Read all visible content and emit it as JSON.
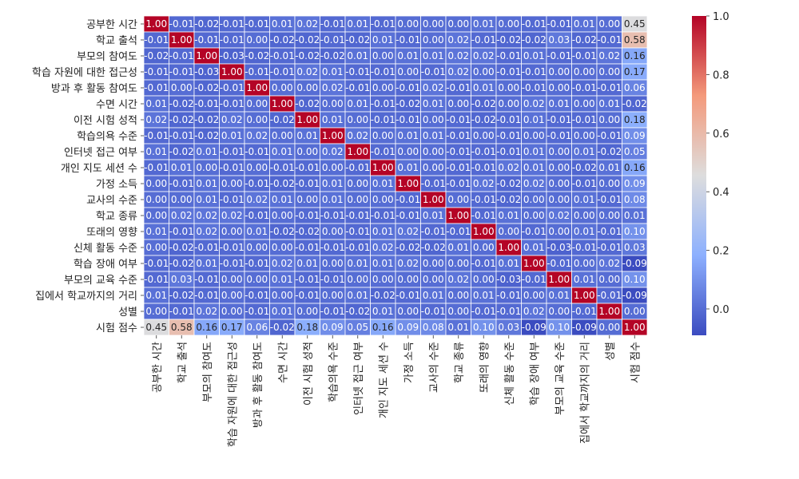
{
  "chart_data": {
    "type": "heatmap",
    "title": "",
    "xlabel": "",
    "ylabel": "",
    "colormap": "coolwarm",
    "color_low": "#3b4cc0",
    "color_mid": "#dddddd",
    "color_high": "#b40426",
    "vmin": -0.09,
    "vmax": 1.0,
    "colorbar_ticks": [
      "0.0",
      "0.2",
      "0.4",
      "0.6",
      "0.8",
      "1.0"
    ],
    "colorbar_tick_values": [
      0.0,
      0.2,
      0.4,
      0.6,
      0.8,
      1.0
    ],
    "labels": [
      "공부한 시간",
      "학교 출석",
      "부모의 참여도",
      "학습 자원에 대한 접근성",
      "방과 후 활동 참여도",
      "수면 시간",
      "이전 시험 성적",
      "학습의욕 수준",
      "인터넷 접근 여부",
      "개인 지도 세션 수",
      "가정 소득",
      "교사의 수준",
      "학교 종류",
      "또래의 영향",
      "신체 활동 수준",
      "학습 장애 여부",
      "부모의 교육 수준",
      "집에서 학교까지의 거리",
      "성별",
      "시험 점수"
    ],
    "values": [
      [
        1.0,
        -0.01,
        -0.02,
        -0.01,
        -0.01,
        0.01,
        0.02,
        -0.01,
        0.01,
        -0.01,
        0.0,
        -0.0,
        -0.0,
        0.01,
        0.0,
        -0.01,
        -0.01,
        0.01,
        0.0,
        0.45
      ],
      [
        -0.01,
        1.0,
        -0.01,
        -0.01,
        -0.0,
        -0.02,
        -0.02,
        -0.01,
        -0.02,
        0.01,
        -0.01,
        -0.0,
        0.02,
        -0.01,
        -0.02,
        -0.02,
        0.03,
        -0.02,
        -0.01,
        0.58
      ],
      [
        -0.02,
        -0.01,
        1.0,
        -0.03,
        -0.02,
        -0.01,
        -0.02,
        -0.02,
        0.01,
        -0.0,
        0.01,
        0.01,
        0.02,
        0.02,
        -0.01,
        0.01,
        -0.01,
        -0.01,
        0.02,
        0.16
      ],
      [
        -0.01,
        -0.01,
        -0.03,
        1.0,
        -0.01,
        -0.01,
        0.02,
        0.01,
        -0.01,
        -0.01,
        -0.0,
        -0.01,
        0.02,
        -0.0,
        -0.01,
        -0.01,
        -0.0,
        -0.0,
        0.0,
        0.17
      ],
      [
        -0.01,
        -0.0,
        -0.02,
        -0.01,
        1.0,
        0.0,
        0.0,
        0.02,
        -0.01,
        0.0,
        -0.01,
        0.02,
        -0.01,
        0.01,
        -0.0,
        -0.01,
        0.0,
        -0.01,
        -0.01,
        0.06
      ],
      [
        0.01,
        -0.02,
        -0.01,
        -0.01,
        0.0,
        1.0,
        -0.02,
        0.0,
        0.01,
        -0.01,
        -0.02,
        0.01,
        -0.0,
        -0.02,
        -0.0,
        0.02,
        0.01,
        -0.0,
        0.01,
        -0.02
      ],
      [
        0.02,
        -0.02,
        -0.02,
        0.02,
        0.0,
        -0.02,
        1.0,
        0.01,
        0.0,
        -0.01,
        -0.01,
        -0.0,
        -0.01,
        -0.02,
        -0.01,
        0.01,
        -0.01,
        -0.01,
        -0.0,
        0.18
      ],
      [
        -0.01,
        -0.01,
        -0.02,
        0.01,
        0.02,
        0.0,
        0.01,
        1.0,
        0.02,
        0.0,
        0.01,
        0.01,
        -0.01,
        -0.0,
        -0.01,
        -0.0,
        -0.01,
        0.0,
        -0.01,
        0.09
      ],
      [
        0.01,
        -0.02,
        0.01,
        -0.01,
        -0.01,
        0.01,
        0.0,
        0.02,
        1.0,
        -0.01,
        0.0,
        0.0,
        -0.01,
        -0.01,
        -0.01,
        0.01,
        -0.0,
        0.01,
        -0.02,
        0.05
      ],
      [
        -0.01,
        0.01,
        -0.0,
        -0.01,
        0.0,
        -0.01,
        -0.01,
        0.0,
        -0.01,
        1.0,
        0.01,
        0.0,
        -0.01,
        -0.01,
        0.02,
        0.01,
        0.0,
        -0.02,
        0.01,
        0.16
      ],
      [
        0.0,
        -0.01,
        0.01,
        -0.0,
        -0.01,
        -0.02,
        -0.01,
        0.01,
        0.0,
        0.01,
        1.0,
        -0.01,
        -0.01,
        0.02,
        -0.02,
        0.02,
        -0.0,
        -0.01,
        0.0,
        0.09
      ],
      [
        -0.0,
        -0.0,
        0.01,
        -0.01,
        0.02,
        0.01,
        -0.0,
        0.01,
        0.0,
        0.0,
        -0.01,
        1.0,
        -0.0,
        -0.01,
        -0.02,
        -0.0,
        -0.0,
        0.01,
        -0.01,
        0.08
      ],
      [
        -0.0,
        0.02,
        0.02,
        0.02,
        -0.01,
        -0.0,
        -0.01,
        -0.01,
        -0.01,
        -0.01,
        -0.01,
        0.01,
        1.0,
        -0.01,
        0.01,
        -0.0,
        0.02,
        -0.0,
        -0.0,
        0.01
      ],
      [
        0.01,
        -0.01,
        0.02,
        -0.0,
        0.01,
        -0.02,
        -0.02,
        -0.0,
        -0.01,
        0.01,
        0.02,
        -0.01,
        -0.01,
        1.0,
        -0.0,
        -0.01,
        0.0,
        0.01,
        -0.01,
        0.1
      ],
      [
        0.0,
        -0.02,
        -0.01,
        -0.01,
        -0.0,
        -0.0,
        -0.01,
        -0.01,
        -0.01,
        0.02,
        -0.02,
        -0.02,
        0.01,
        -0.0,
        1.0,
        0.01,
        -0.03,
        -0.01,
        -0.01,
        0.03
      ],
      [
        -0.01,
        -0.02,
        0.01,
        -0.01,
        -0.01,
        0.02,
        0.01,
        -0.0,
        0.01,
        0.01,
        0.02,
        -0.0,
        -0.0,
        -0.01,
        0.01,
        1.0,
        -0.01,
        -0.0,
        0.02,
        -0.09
      ],
      [
        -0.01,
        0.03,
        -0.01,
        -0.0,
        0.0,
        0.01,
        -0.01,
        -0.01,
        -0.0,
        0.0,
        -0.0,
        -0.0,
        0.02,
        0.0,
        -0.03,
        -0.01,
        1.0,
        0.01,
        0.0,
        0.1
      ],
      [
        0.01,
        -0.02,
        -0.01,
        -0.0,
        -0.01,
        -0.0,
        -0.01,
        0.0,
        0.01,
        -0.02,
        -0.01,
        0.01,
        -0.0,
        0.01,
        -0.01,
        -0.0,
        0.01,
        1.0,
        -0.01,
        -0.09
      ],
      [
        0.0,
        -0.01,
        0.02,
        0.0,
        -0.01,
        0.01,
        -0.0,
        -0.01,
        -0.02,
        0.01,
        0.0,
        -0.01,
        -0.0,
        -0.01,
        -0.01,
        0.02,
        0.0,
        -0.01,
        1.0,
        0.0
      ],
      [
        0.45,
        0.58,
        0.16,
        0.17,
        0.06,
        -0.02,
        0.18,
        0.09,
        0.05,
        0.16,
        0.09,
        0.08,
        0.01,
        0.1,
        0.03,
        -0.09,
        0.1,
        -0.09,
        0.0,
        1.0
      ]
    ]
  }
}
